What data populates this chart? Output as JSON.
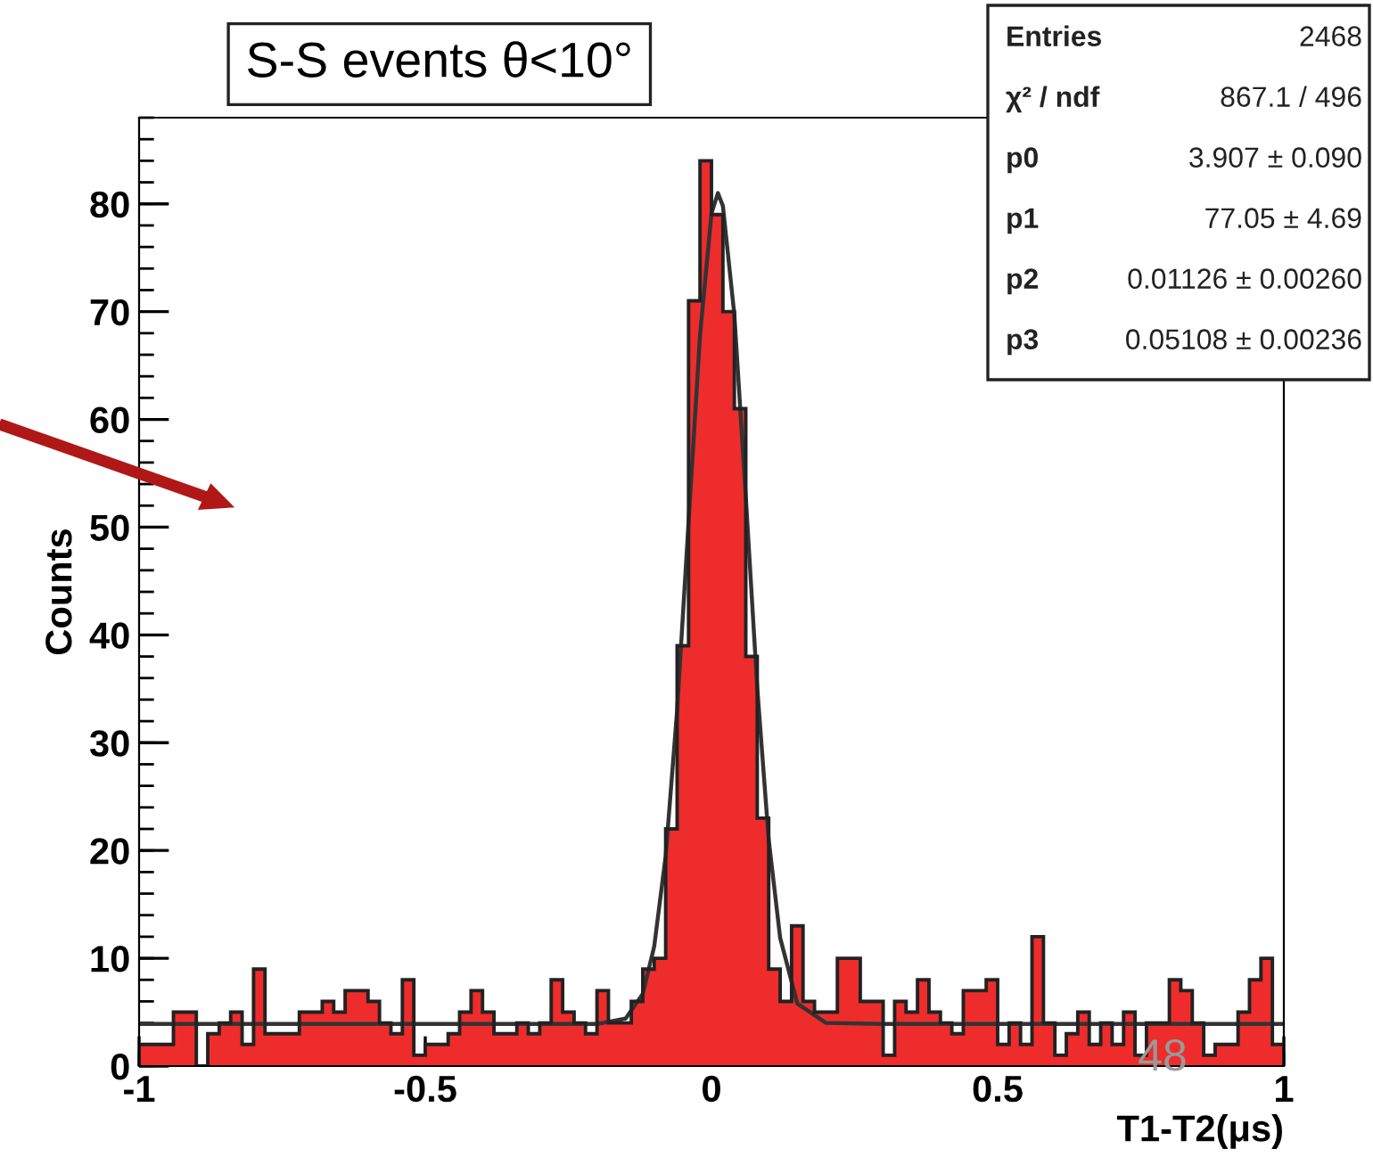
{
  "chart_data": {
    "type": "histogram",
    "title": "S-S events θ<10°",
    "xlabel": "T1-T2(μs)",
    "ylabel": "Counts",
    "bins": [
      -1.0,
      -0.98,
      -0.96,
      -0.94,
      -0.92,
      -0.9,
      -0.88,
      -0.86,
      -0.84,
      -0.82,
      -0.8,
      -0.78,
      -0.76,
      -0.74,
      -0.72,
      -0.7,
      -0.68,
      -0.66,
      -0.64,
      -0.62,
      -0.6,
      -0.58,
      -0.56,
      -0.54,
      -0.52,
      -0.5,
      -0.48,
      -0.46,
      -0.44,
      -0.42,
      -0.4,
      -0.38,
      -0.36,
      -0.34,
      -0.32,
      -0.3,
      -0.28,
      -0.26,
      -0.24,
      -0.22,
      -0.2,
      -0.18,
      -0.16,
      -0.14,
      -0.12,
      -0.1,
      -0.08,
      -0.06,
      -0.04,
      -0.02,
      0.0,
      0.02,
      0.04,
      0.06,
      0.08,
      0.1,
      0.12,
      0.14,
      0.16,
      0.18,
      0.2,
      0.22,
      0.24,
      0.26,
      0.28,
      0.3,
      0.32,
      0.34,
      0.36,
      0.38,
      0.4,
      0.42,
      0.44,
      0.46,
      0.48,
      0.5,
      0.52,
      0.54,
      0.56,
      0.58,
      0.6,
      0.62,
      0.64,
      0.66,
      0.68,
      0.7,
      0.72,
      0.74,
      0.76,
      0.78,
      0.8,
      0.82,
      0.84,
      0.86,
      0.88,
      0.9,
      0.92,
      0.94,
      0.96,
      0.98,
      1.0
    ],
    "series": [
      {
        "type": "histogram",
        "color": "#ee2c2c",
        "values": [
          2,
          2,
          2,
          5,
          5,
          0,
          3,
          4,
          5,
          2,
          9,
          3,
          3,
          3,
          5,
          5,
          6,
          5,
          7,
          7,
          6,
          4,
          3,
          8,
          1,
          2,
          2,
          3,
          5,
          7,
          5,
          3,
          3,
          4,
          3,
          4,
          8,
          5,
          4,
          3,
          7,
          4,
          4,
          6,
          9,
          10,
          22,
          39,
          71,
          84,
          79,
          70,
          61,
          38,
          23,
          9,
          6,
          13,
          6,
          5,
          5,
          10,
          10,
          6,
          6,
          1,
          6,
          5,
          8,
          5,
          4,
          3,
          7,
          7,
          8,
          2,
          4,
          2,
          12,
          4,
          1,
          3,
          5,
          2,
          4,
          2,
          5,
          1,
          4,
          4,
          8,
          7,
          4,
          1,
          2,
          2,
          5,
          8,
          10,
          2
        ]
      },
      {
        "type": "line",
        "color": "#333333",
        "x": [
          -1.0,
          -0.3,
          -0.2,
          -0.15,
          -0.12,
          -0.1,
          -0.08,
          -0.06,
          -0.04,
          -0.02,
          0.0,
          0.01126,
          0.02,
          0.04,
          0.06,
          0.08,
          0.1,
          0.12,
          0.15,
          0.2,
          0.3,
          1.0
        ],
        "values": [
          3.9,
          3.9,
          3.9,
          4.4,
          6.7,
          11.1,
          19.5,
          33.0,
          50.5,
          67.8,
          79.1,
          81.0,
          79.8,
          69.7,
          52.8,
          35.1,
          21.0,
          11.9,
          5.8,
          4.0,
          3.9,
          3.9
        ]
      }
    ],
    "xlim": [
      -1,
      1
    ],
    "ylim": [
      0,
      88
    ],
    "xticks": [
      -1,
      -0.5,
      0,
      0.5,
      1
    ],
    "yticks": [
      0,
      10,
      20,
      30,
      40,
      50,
      60,
      70,
      80
    ],
    "grid": false,
    "legend": false,
    "annotations": [
      "Entries",
      "2468",
      "χ² / ndf",
      "867.1 / 496",
      "p0",
      "3.907 ± 0.090",
      "p1",
      "77.05 ± 4.69",
      "p2",
      "0.01126 ± 0.00260",
      "p3",
      "0.05108 ± 0.00236",
      "48"
    ]
  }
}
